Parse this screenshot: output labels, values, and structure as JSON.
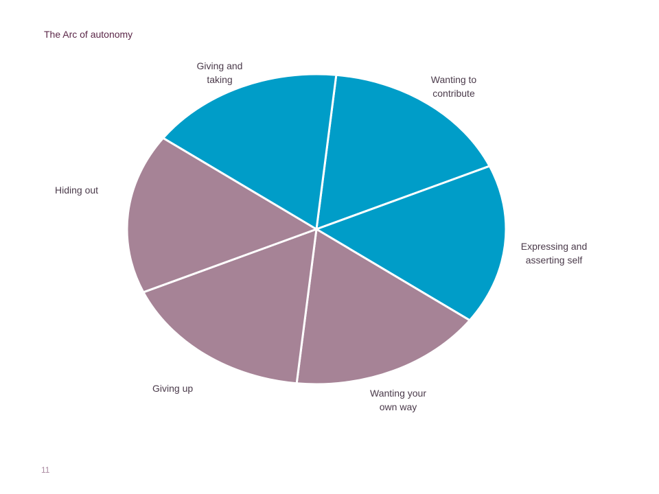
{
  "chart_data": {
    "type": "pie",
    "title": "The Arc of autonomy",
    "slices": [
      {
        "label": "Wanting to\ncontribute",
        "value": 1,
        "color": "#009dc8"
      },
      {
        "label": "Expressing and\nasserting self",
        "value": 1,
        "color": "#009dc8"
      },
      {
        "label": "Wanting your\nown way",
        "value": 1,
        "color": "#a68396"
      },
      {
        "label": "Giving up",
        "value": 1,
        "color": "#a68396"
      },
      {
        "label": "Hiding out",
        "value": 1,
        "color": "#a68396"
      },
      {
        "label": "Giving and\ntaking",
        "value": 1,
        "color": "#009dc8"
      }
    ]
  },
  "page_number": "11"
}
